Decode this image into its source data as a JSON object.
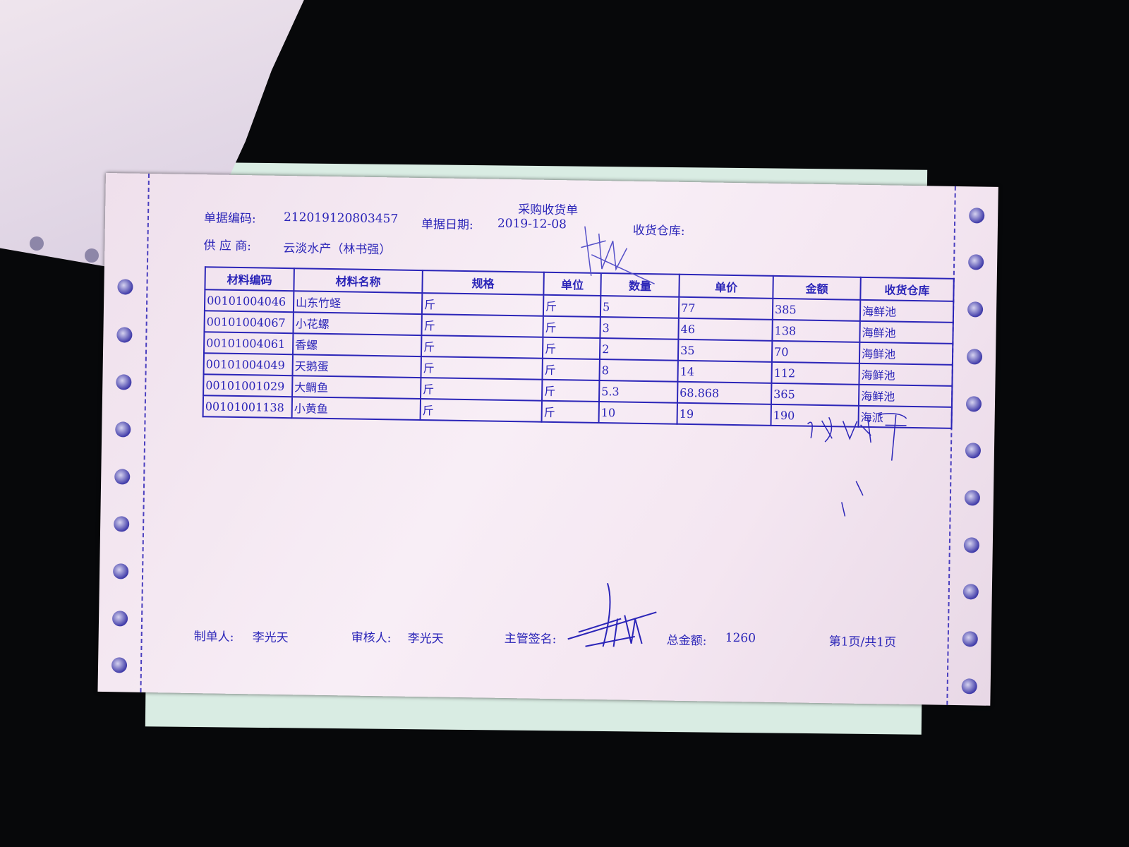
{
  "document": {
    "title": "采购收货单",
    "header": {
      "doc_no_label": "单据编码:",
      "doc_no": "212019120803457",
      "doc_date_label": "单据日期:",
      "doc_date": "2019-12-08",
      "warehouse_label": "收货仓库:",
      "supplier_label": "供 应 商:",
      "supplier": "云淡水产（林书强）"
    },
    "table": {
      "columns": [
        "材料编码",
        "材料名称",
        "规格",
        "单位",
        "数量",
        "单价",
        "金额",
        "收货仓库"
      ],
      "rows": [
        [
          "00101004046",
          "山东竹蛏",
          "斤",
          "斤",
          "5",
          "77",
          "385",
          "海鲜池"
        ],
        [
          "00101004067",
          "小花螺",
          "斤",
          "斤",
          "3",
          "46",
          "138",
          "海鲜池"
        ],
        [
          "00101004061",
          "香螺",
          "斤",
          "斤",
          "2",
          "35",
          "70",
          "海鲜池"
        ],
        [
          "00101004049",
          "天鹅蛋",
          "斤",
          "斤",
          "8",
          "14",
          "112",
          "海鲜池"
        ],
        [
          "00101001029",
          "大鲷鱼",
          "斤",
          "斤",
          "5.3",
          "68.868",
          "365",
          "海鲜池"
        ],
        [
          "00101001138",
          "小黄鱼",
          "斤",
          "斤",
          "10",
          "19",
          "190",
          "海派"
        ]
      ]
    },
    "footer": {
      "maker_label": "制单人:",
      "maker": "李光天",
      "reviewer_label": "审核人:",
      "reviewer": "李光天",
      "supervisor_label": "主管签名:",
      "total_label": "总金额:",
      "total": "1260",
      "page": "第1页/共1页"
    },
    "colors": {
      "ink": "#2b25b8",
      "paper": "#f4e6f1",
      "background": "#07080a"
    }
  }
}
